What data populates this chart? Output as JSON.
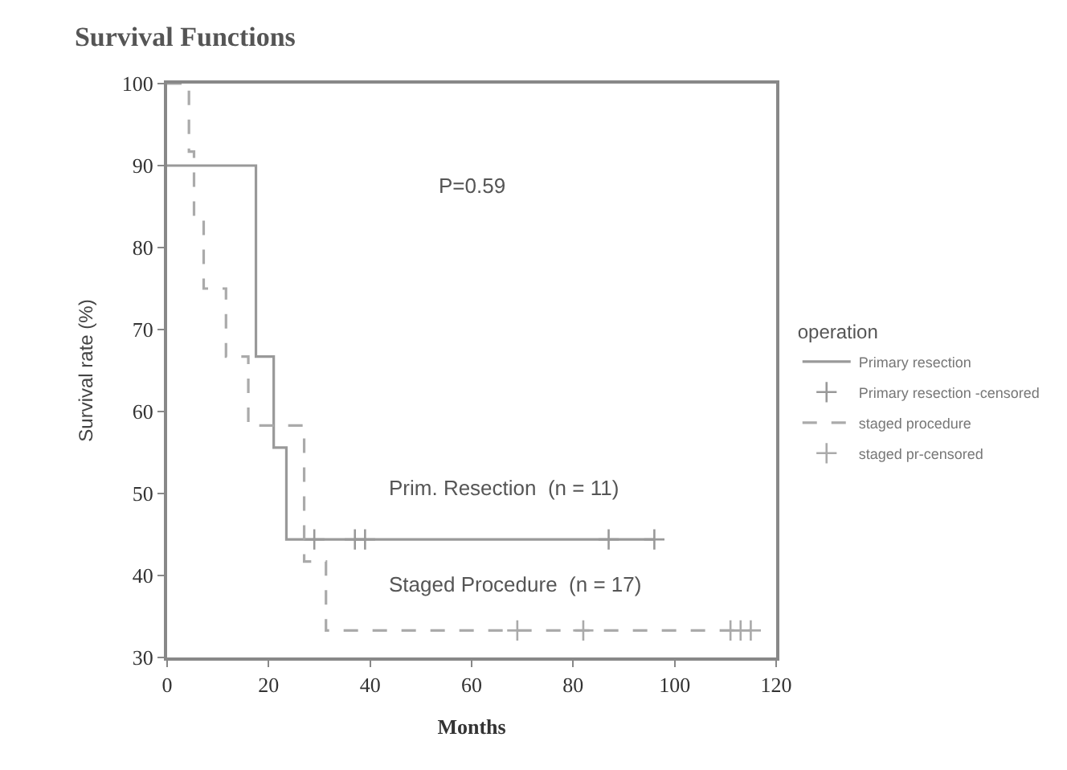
{
  "chart_data": {
    "type": "step",
    "title": "Survival Functions",
    "xlabel": "Months",
    "ylabel": "Survival rate (%)",
    "legend_title": "operation",
    "xlim": [
      0,
      120
    ],
    "xticks": [
      0,
      20,
      40,
      60,
      80,
      100,
      120
    ],
    "ylim": [
      30,
      100
    ],
    "yticks": [
      30,
      40,
      50,
      60,
      70,
      80,
      90,
      100
    ],
    "legend": "right",
    "series": [
      {
        "name": "Primary resection",
        "color": "#999999",
        "line_style": "solid",
        "marker": "none",
        "x": [
          0,
          17.5,
          21,
          23.5,
          96
        ],
        "values": [
          90,
          66.7,
          55.6,
          44.4,
          44.4
        ]
      },
      {
        "name": "Primary resection -censored",
        "type": "scatter",
        "color": "#999999",
        "marker": "cross",
        "x": [
          29,
          37,
          39,
          87,
          96
        ],
        "values": [
          44.4,
          44.4,
          44.4,
          44.4,
          44.4
        ]
      },
      {
        "name": "staged procedure",
        "color": "#aaaaaa",
        "line_style": "dashed",
        "marker": "none",
        "x": [
          0,
          4.3,
          5.3,
          7.2,
          11.6,
          16,
          27,
          31.3,
          115
        ],
        "values": [
          100,
          91.7,
          83.3,
          75,
          66.7,
          58.3,
          41.7,
          33.3,
          33.3
        ]
      },
      {
        "name": "staged pr-censored",
        "type": "scatter",
        "color": "#aaaaaa",
        "marker": "cross",
        "x": [
          69,
          82,
          111,
          113,
          115
        ],
        "values": [
          33.3,
          33.3,
          33.3,
          33.3,
          33.3
        ]
      }
    ],
    "annotations": [
      "P=0.59",
      "Prim. Resection  (n = 11)",
      "Staged Procedure  (n = 17)"
    ]
  }
}
